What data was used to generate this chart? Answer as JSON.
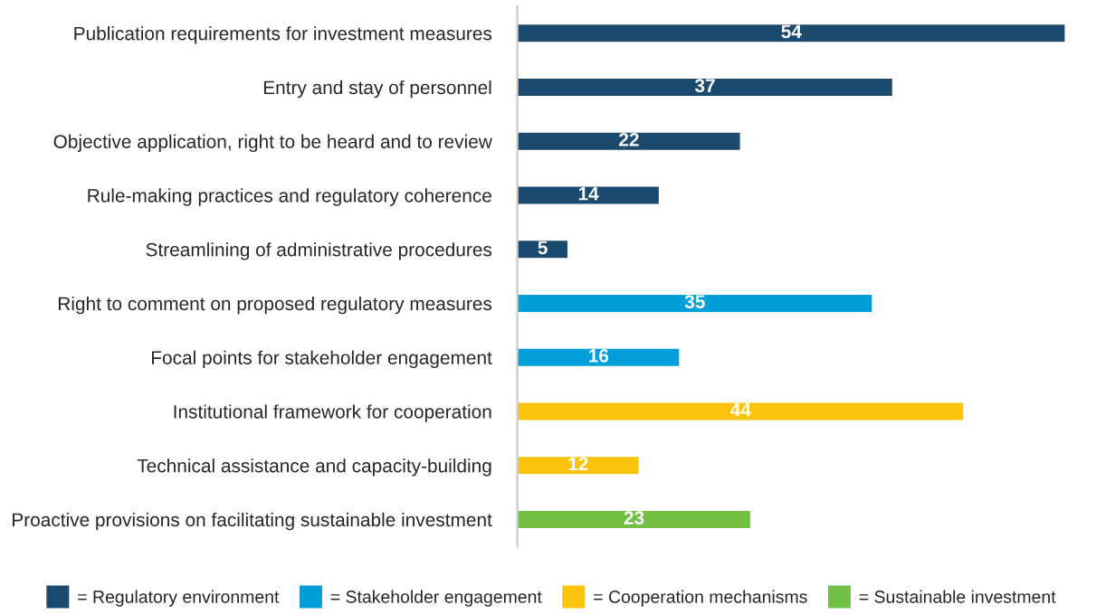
{
  "chart_data": {
    "type": "bar",
    "orientation": "horizontal",
    "stacked": true,
    "data_labels": true,
    "legend": "bottom",
    "grid": false,
    "categories": [
      "Publication requirements for investment measures",
      "Entry and stay of personnel",
      "Objective application, right to be heard and to review",
      "Rule-making practices and regulatory coherence",
      "Streamlining of administrative procedures",
      "Right to comment on proposed regulatory measures",
      "Focal points for stakeholder engagement",
      "Institutional framework for cooperation",
      "Technical assistance and capacity-building",
      "Proactive provisions on facilitating sustainable investment"
    ],
    "series": [
      {
        "name": "= Regulatory environment",
        "color": "#1c4a6e",
        "values": [
          54,
          37,
          22,
          14,
          5,
          null,
          null,
          null,
          null,
          null
        ]
      },
      {
        "name": "= Stakeholder engagement",
        "color": "#009fdb",
        "values": [
          null,
          null,
          null,
          null,
          null,
          35,
          16,
          null,
          null,
          null
        ]
      },
      {
        "name": "= Cooperation mechanisms",
        "color": "#fbc30a",
        "values": [
          null,
          null,
          null,
          null,
          null,
          null,
          null,
          44,
          12,
          null
        ]
      },
      {
        "name": "= Sustainable investment",
        "color": "#72bf44",
        "values": [
          null,
          null,
          null,
          null,
          null,
          null,
          null,
          null,
          null,
          23
        ]
      }
    ]
  }
}
